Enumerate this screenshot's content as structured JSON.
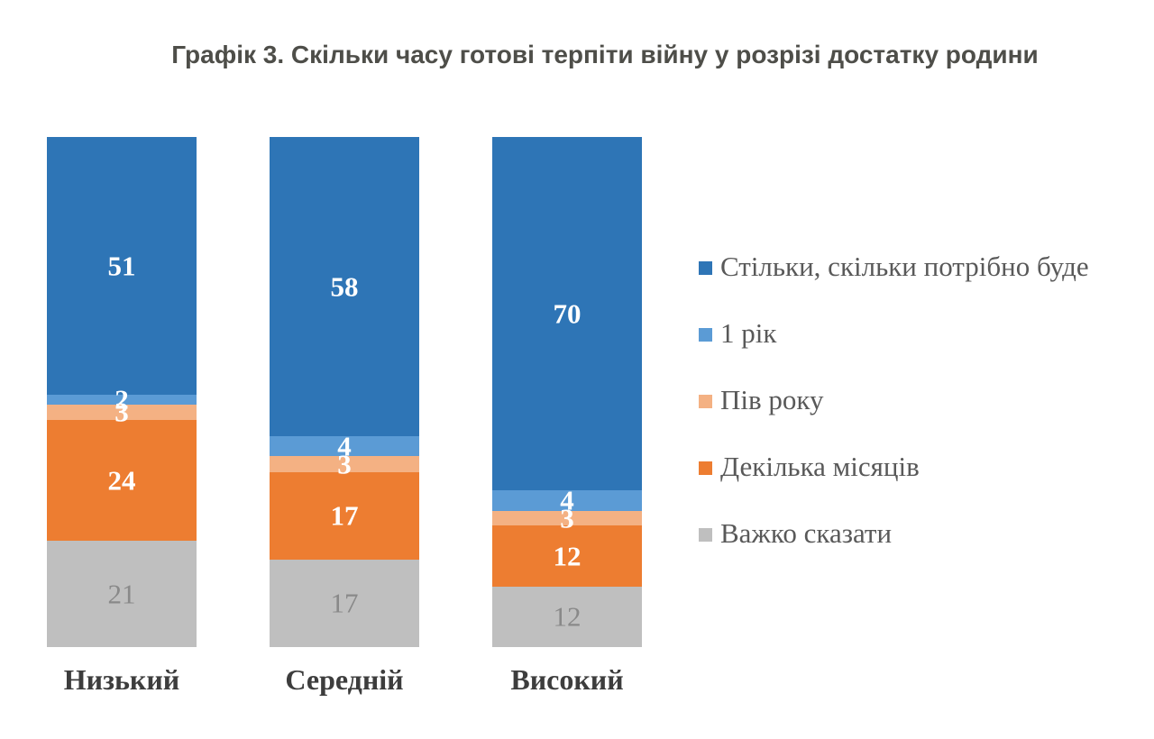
{
  "title": "Графік 3. Скільки часу готові терпіти війну у розрізі достатку родини",
  "chart_data": {
    "type": "bar",
    "stacked": true,
    "orientation": "vertical",
    "categories": [
      "Низький",
      "Середній",
      "Високий"
    ],
    "series": [
      {
        "name": "Стільки, скільки потрібно буде",
        "color": "#2E75B6",
        "label_color": "#FFFFFF",
        "label_bold": true,
        "values": [
          51,
          58,
          70
        ]
      },
      {
        "name": "1 рік",
        "color": "#5B9BD5",
        "label_color": "#FFFFFF",
        "label_bold": true,
        "values": [
          2,
          4,
          4
        ]
      },
      {
        "name": "Пів року",
        "color": "#F4B183",
        "label_color": "#FFFFFF",
        "label_bold": true,
        "values": [
          3,
          3,
          3
        ]
      },
      {
        "name": "Декілька місяців",
        "color": "#ED7D31",
        "label_color": "#FFFFFF",
        "label_bold": true,
        "values": [
          24,
          17,
          12
        ]
      },
      {
        "name": "Важко сказати",
        "color": "#BFBFBF",
        "label_color": "#898989",
        "label_bold": false,
        "values": [
          21,
          17,
          12
        ]
      }
    ],
    "legend_position": "right",
    "grid": false,
    "axes_visible": false,
    "value_labels": true
  }
}
